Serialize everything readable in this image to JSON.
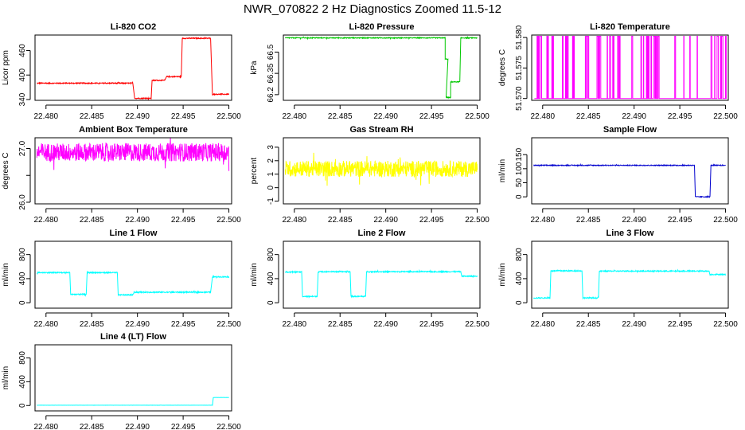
{
  "page": {
    "title": "NWR_070822  2 Hz Diagnostics Zoomed 11.5-12"
  },
  "chart_data": [
    {
      "type": "line",
      "title": "Li-820 CO2",
      "ylabel": "Licor ppm",
      "color": "#ff0000",
      "xlim": [
        22.4788,
        22.5003
      ],
      "ylim": [
        338,
        498
      ],
      "xticks": [
        22.48,
        22.485,
        22.49,
        22.495,
        22.5
      ],
      "yticks": [
        340,
        400,
        460
      ],
      "yticklabels": [
        "340",
        "400",
        "460"
      ],
      "steps": [
        [
          22.479,
          22.4895,
          380
        ],
        [
          22.4897,
          22.4915,
          343
        ],
        [
          22.4916,
          22.493,
          387
        ],
        [
          22.4932,
          22.4948,
          396
        ],
        [
          22.4949,
          22.498,
          490
        ],
        [
          22.4982,
          22.5,
          353
        ]
      ],
      "noise": 1.2
    },
    {
      "type": "line",
      "title": "Li-820 Pressure",
      "ylabel": "kPa",
      "color": "#00c800",
      "xlim": [
        22.4788,
        22.5003
      ],
      "ylim": [
        66.16,
        66.62
      ],
      "xticks": [
        22.48,
        22.485,
        22.49,
        22.495,
        22.5
      ],
      "yticks": [
        66.2,
        66.35,
        66.5
      ],
      "yticklabels": [
        "66.2",
        "66.35",
        "66.5"
      ],
      "steps": [
        [
          22.479,
          22.4965,
          66.6
        ],
        [
          22.4965,
          22.4968,
          66.45
        ],
        [
          22.4966,
          22.4971,
          66.18
        ],
        [
          22.4971,
          22.4981,
          66.29
        ],
        [
          22.4982,
          22.5,
          66.6
        ]
      ],
      "noise": 0.003
    },
    {
      "type": "line",
      "title": "Li-820 Temperature",
      "ylabel": "degrees C",
      "color": "#ff00ff",
      "xlim": [
        22.4788,
        22.5003
      ],
      "ylim": [
        51.5697,
        51.5804
      ],
      "xticks": [
        22.48,
        22.485,
        22.49,
        22.495,
        22.5
      ],
      "yticks": [
        51.57,
        51.575,
        51.58
      ],
      "yticklabels": [
        "51.570",
        "51.575",
        "51.580"
      ],
      "binary": [
        51.57,
        51.5802
      ],
      "flips": 30
    },
    {
      "type": "line",
      "title": "Ambient Box Temperature",
      "ylabel": "degrees C",
      "color": "#ff00ff",
      "xlim": [
        22.4788,
        22.5003
      ],
      "ylim": [
        25.97,
        27.2
      ],
      "xticks": [
        22.48,
        22.485,
        22.49,
        22.495,
        22.5
      ],
      "yticks": [
        26.0,
        26.5,
        27.0
      ],
      "yticklabels": [
        "26.0",
        "",
        "27.0"
      ],
      "steps": [
        [
          22.479,
          22.5,
          26.93
        ]
      ],
      "noise": 0.17
    },
    {
      "type": "line",
      "title": "Gas Stream RH",
      "ylabel": "percent",
      "color": "#ffff00",
      "xlim": [
        22.4788,
        22.5003
      ],
      "ylim": [
        -1.2,
        3.7
      ],
      "xticks": [
        22.48,
        22.485,
        22.49,
        22.495,
        22.5
      ],
      "yticks": [
        -1,
        0,
        1,
        2,
        3
      ],
      "yticklabels": [
        "-1",
        "0",
        "1",
        "2",
        "3"
      ],
      "steps": [
        [
          22.479,
          22.5,
          1.4
        ]
      ],
      "noise": 0.6
    },
    {
      "type": "line",
      "title": "Sample Flow",
      "ylabel": "ml/min",
      "color": "#0000cd",
      "xlim": [
        22.4788,
        22.5003
      ],
      "ylim": [
        -25,
        210
      ],
      "xticks": [
        22.48,
        22.485,
        22.49,
        22.495,
        22.5
      ],
      "yticks": [
        0,
        50,
        100,
        150
      ],
      "yticklabels": [
        "0",
        "50",
        "100",
        "150"
      ],
      "steps": [
        [
          22.479,
          22.4966,
          112
        ],
        [
          22.4967,
          22.4983,
          0
        ],
        [
          22.4984,
          22.5,
          112
        ]
      ],
      "noise": 1.5
    },
    {
      "type": "line",
      "title": "Line 1 Flow",
      "ylabel": "ml/min",
      "color": "#00ffff",
      "xlim": [
        22.4788,
        22.5003
      ],
      "ylim": [
        -90,
        1020
      ],
      "xticks": [
        22.48,
        22.485,
        22.49,
        22.495,
        22.5
      ],
      "yticks": [
        0,
        400,
        800
      ],
      "yticklabels": [
        "0",
        "400",
        "800"
      ],
      "steps": [
        [
          22.479,
          22.4826,
          500
        ],
        [
          22.4827,
          22.4844,
          140
        ],
        [
          22.4845,
          22.4878,
          500
        ],
        [
          22.4879,
          22.4895,
          130
        ],
        [
          22.4896,
          22.498,
          175
        ],
        [
          22.4982,
          22.5,
          430
        ]
      ],
      "noise": 9
    },
    {
      "type": "line",
      "title": "Line 2 Flow",
      "ylabel": "ml/min",
      "color": "#00ffff",
      "xlim": [
        22.4788,
        22.5003
      ],
      "ylim": [
        -90,
        1020
      ],
      "xticks": [
        22.48,
        22.485,
        22.49,
        22.495,
        22.5
      ],
      "yticks": [
        0,
        400,
        800
      ],
      "yticklabels": [
        "0",
        "400",
        "800"
      ],
      "steps": [
        [
          22.479,
          22.4808,
          510
        ],
        [
          22.4809,
          22.4825,
          105
        ],
        [
          22.4826,
          22.4861,
          515
        ],
        [
          22.4862,
          22.4878,
          105
        ],
        [
          22.4879,
          22.4982,
          515
        ],
        [
          22.4983,
          22.5,
          440
        ]
      ],
      "noise": 9
    },
    {
      "type": "line",
      "title": "Line 3 Flow",
      "ylabel": "ml/min",
      "color": "#00ffff",
      "xlim": [
        22.4788,
        22.5003
      ],
      "ylim": [
        -90,
        1020
      ],
      "xticks": [
        22.48,
        22.485,
        22.49,
        22.495,
        22.5
      ],
      "yticks": [
        0,
        400,
        800
      ],
      "yticklabels": [
        "0",
        "400",
        "800"
      ],
      "steps": [
        [
          22.479,
          22.4808,
          80
        ],
        [
          22.4809,
          22.4843,
          530
        ],
        [
          22.4844,
          22.4861,
          80
        ],
        [
          22.4862,
          22.4982,
          525
        ],
        [
          22.4983,
          22.5,
          470
        ]
      ],
      "noise": 9
    },
    {
      "type": "line",
      "title": "Line 4 (LT) Flow",
      "ylabel": "ml/min",
      "color": "#00ffff",
      "xlim": [
        22.4788,
        22.5003
      ],
      "ylim": [
        -90,
        1020
      ],
      "xticks": [
        22.48,
        22.485,
        22.49,
        22.495,
        22.5
      ],
      "yticks": [
        0,
        400,
        800
      ],
      "yticklabels": [
        "0",
        "400",
        "800"
      ],
      "steps": [
        [
          22.479,
          22.4982,
          5
        ],
        [
          22.4983,
          22.5,
          135
        ]
      ],
      "noise": 1
    }
  ]
}
